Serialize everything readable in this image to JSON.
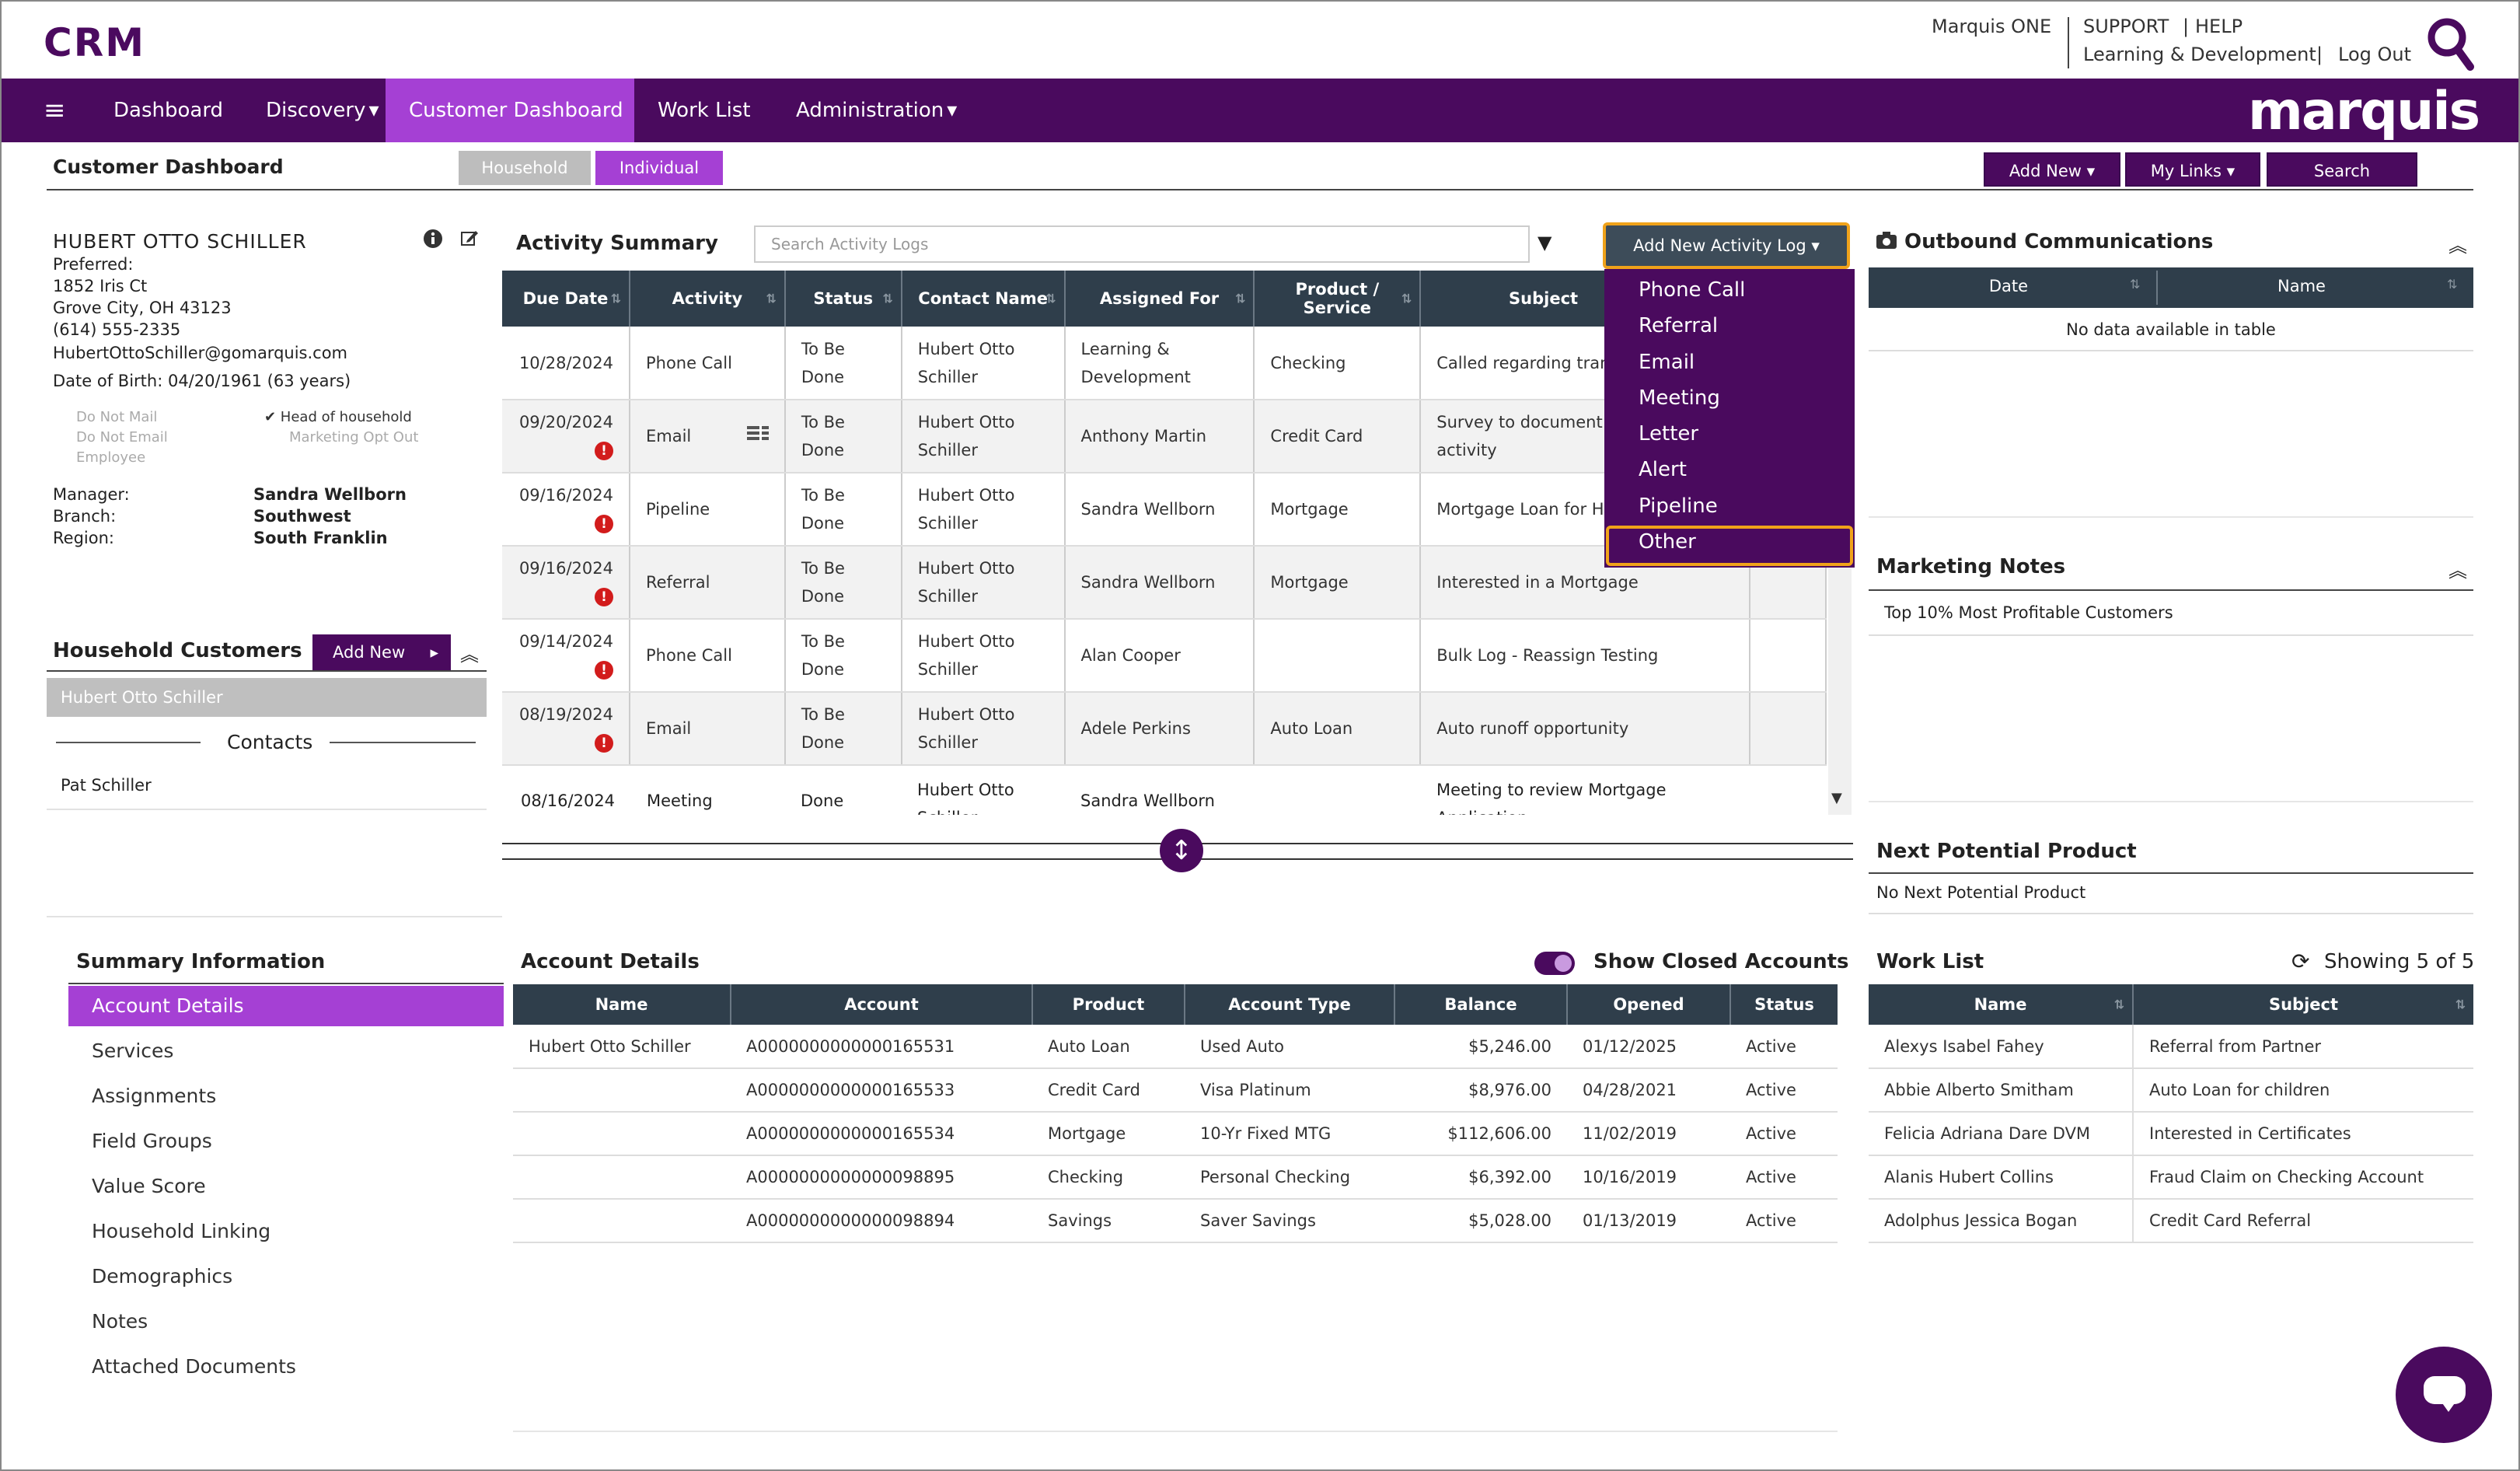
{
  "app": {
    "title": "CRM",
    "brand": "marquis"
  },
  "toplinks": {
    "marquis_one": "Marquis ONE",
    "support": "SUPPORT",
    "sep": "|",
    "help": "HELP",
    "learning": "Learning & Development",
    "logout": "Log Out"
  },
  "nav": {
    "menu_icon": "≡",
    "dashboard": "Dashboard",
    "discovery": "Discovery",
    "customer_dashboard": "Customer Dashboard",
    "work_list": "Work List",
    "administration": "Administration",
    "caret": "▾"
  },
  "page": {
    "title": "Customer Dashboard",
    "seg_household": "Household",
    "seg_individual": "Individual",
    "add_new": "Add New ▾",
    "my_links": "My Links ▾",
    "search": "Search"
  },
  "customer": {
    "name": "HUBERT OTTO SCHILLER",
    "preferred": "Preferred:",
    "address1": "1852 Iris Ct",
    "address2": "Grove City, OH 43123",
    "phone": "(614) 555-2335",
    "email": "HubertOttoSchiller@gomarquis.com",
    "dob": "Date of Birth: 04/20/1961 (63 years)",
    "flags": {
      "do_not_mail": "Do Not Mail",
      "do_not_email": "Do Not Email",
      "employee": "Employee",
      "head_of_household": "✔ Head of household",
      "marketing_opt_out": "Marketing Opt Out"
    },
    "manager_label": "Manager:",
    "manager": "Sandra Wellborn",
    "branch_label": "Branch:",
    "branch": "Southwest",
    "region_label": "Region:",
    "region": "South Franklin"
  },
  "household": {
    "title": "Household Customers",
    "add_new": "Add New",
    "add_arrow": "▸",
    "collapse": "︽",
    "selected": "Hubert Otto Schiller",
    "contacts_label": "Contacts",
    "contact": "Pat Schiller"
  },
  "activity": {
    "title": "Activity Summary",
    "search_placeholder": "Search Activity Logs",
    "filter_caret": "▼",
    "add_log_button": "Add New Activity Log ▾",
    "columns": [
      "Due Date",
      "Activity",
      "Status",
      "Contact Name",
      "Assigned For",
      "Product / Service",
      "Subject"
    ],
    "sort_icon": "⇅",
    "rows": [
      {
        "date": "10/28/2024",
        "alert": "",
        "activity": "Phone Call",
        "status": "To Be Done",
        "contact": "Hubert Otto Schiller",
        "assigned": "Learning & Development",
        "product": "Checking",
        "subject": "Called regarding trans on account"
      },
      {
        "date": "09/20/2024",
        "alert": "!",
        "activity": "Email",
        "status": "To Be Done",
        "contact": "Hubert Otto Schiller",
        "assigned": "Anthony Martin",
        "product": "Credit Card",
        "subject": "Survey to document fraudulent activity"
      },
      {
        "date": "09/16/2024",
        "alert": "!",
        "activity": "Pipeline",
        "status": "To Be Done",
        "contact": "Hubert Otto Schiller",
        "assigned": "Sandra Wellborn",
        "product": "Mortgage",
        "subject": "Mortgage Loan for Hu"
      },
      {
        "date": "09/16/2024",
        "alert": "!",
        "activity": "Referral",
        "status": "To Be Done",
        "contact": "Hubert Otto Schiller",
        "assigned": "Sandra Wellborn",
        "product": "Mortgage",
        "subject": "Interested in a Mortgage"
      },
      {
        "date": "09/14/2024",
        "alert": "!",
        "activity": "Phone Call",
        "status": "To Be Done",
        "contact": "Hubert Otto Schiller",
        "assigned": "Alan Cooper",
        "product": "",
        "subject": "Bulk Log - Reassign Testing"
      },
      {
        "date": "08/19/2024",
        "alert": "!",
        "activity": "Email",
        "status": "To Be Done",
        "contact": "Hubert Otto Schiller",
        "assigned": "Adele Perkins",
        "product": "Auto Loan",
        "subject": "Auto runoff opportunity"
      },
      {
        "date": "08/16/2024",
        "alert": "",
        "activity": "Meeting",
        "status": "Done",
        "contact": "Hubert Otto Schiller",
        "assigned": "Sandra Wellborn",
        "product": "",
        "subject": "Meeting to review Mortgage Application"
      }
    ],
    "menu": [
      "Phone Call",
      "Referral",
      "Email",
      "Meeting",
      "Letter",
      "Alert",
      "Pipeline",
      "Other"
    ],
    "splitter_icon": "↕"
  },
  "outbound": {
    "title": "Outbound Communications",
    "columns": [
      "Date",
      "Name"
    ],
    "empty": "No data available in table"
  },
  "marketing": {
    "title": "Marketing Notes",
    "note": "Top 10% Most Profitable Customers"
  },
  "next_product": {
    "title": "Next Potential Product",
    "value": "No Next Potential Product"
  },
  "summary": {
    "title": "Summary Information",
    "items": [
      "Account Details",
      "Services",
      "Assignments",
      "Field Groups",
      "Value Score",
      "Household Linking",
      "Demographics",
      "Notes",
      "Attached Documents"
    ]
  },
  "accounts": {
    "title": "Account Details",
    "show_closed": "Show Closed Accounts",
    "columns": [
      "Name",
      "Account",
      "Product",
      "Account Type",
      "Balance",
      "Opened",
      "Status"
    ],
    "rows": [
      {
        "name": "Hubert Otto Schiller",
        "account": "A0000000000000165531",
        "product": "Auto Loan",
        "type": "Used Auto",
        "balance": "$5,246.00",
        "opened": "01/12/2025",
        "status": "Active"
      },
      {
        "name": "",
        "account": "A0000000000000165533",
        "product": "Credit Card",
        "type": "Visa Platinum",
        "balance": "$8,976.00",
        "opened": "04/28/2021",
        "status": "Active"
      },
      {
        "name": "",
        "account": "A0000000000000165534",
        "product": "Mortgage",
        "type": "10-Yr Fixed MTG",
        "balance": "$112,606.00",
        "opened": "11/02/2019",
        "status": "Active"
      },
      {
        "name": "",
        "account": "A0000000000000098895",
        "product": "Checking",
        "type": "Personal Checking",
        "balance": "$6,392.00",
        "opened": "10/16/2019",
        "status": "Active"
      },
      {
        "name": "",
        "account": "A0000000000000098894",
        "product": "Savings",
        "type": "Saver Savings",
        "balance": "$5,028.00",
        "opened": "01/13/2019",
        "status": "Active"
      }
    ]
  },
  "worklist": {
    "title": "Work List",
    "showing": "Showing 5 of 5",
    "refresh_icon": "⟳",
    "columns": [
      "Name",
      "Subject"
    ],
    "rows": [
      {
        "name": "Alexys Isabel Fahey",
        "subject": "Referral from Partner"
      },
      {
        "name": "Abbie Alberto Smitham",
        "subject": "Auto Loan for children"
      },
      {
        "name": "Felicia Adriana Dare DVM",
        "subject": "Interested in Certificates"
      },
      {
        "name": "Alanis Hubert Collins",
        "subject": "Fraud Claim on Checking Account"
      },
      {
        "name": "Adolphus Jessica Bogan",
        "subject": "Credit Card Referral"
      }
    ]
  },
  "colors": {
    "brand_purple": "#4a0a5e",
    "accent_purple": "#a540d4",
    "highlight_orange": "#f0a21a",
    "table_header": "#2f3e4b",
    "alert_red": "#d21c1c"
  }
}
